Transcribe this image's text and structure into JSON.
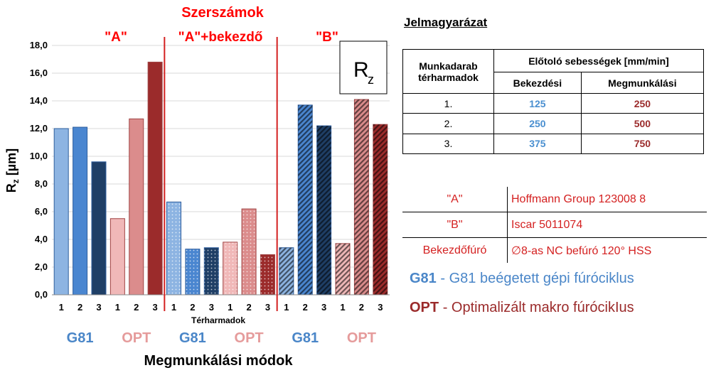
{
  "chart_data": {
    "type": "bar",
    "title": "Szerszámok",
    "ylabel": "Rz [µm]",
    "xlabel": "Megmunkálási módok",
    "xsublabel": "Térharmadok",
    "ylim": [
      0,
      18
    ],
    "yticks": [
      "0,0",
      "2,0",
      "4,0",
      "6,0",
      "8,0",
      "10,0",
      "12,0",
      "14,0",
      "16,0",
      "18,0"
    ],
    "badge": "Rz",
    "groups": [
      {
        "label": "\"A\"",
        "modes": [
          {
            "name": "G81",
            "bars": [
              {
                "x": "1",
                "value": 12.0
              },
              {
                "x": "2",
                "value": 12.1
              },
              {
                "x": "3",
                "value": 9.6
              }
            ]
          },
          {
            "name": "OPT",
            "bars": [
              {
                "x": "1",
                "value": 5.5
              },
              {
                "x": "2",
                "value": 12.7
              },
              {
                "x": "3",
                "value": 16.8
              }
            ]
          }
        ]
      },
      {
        "label": "\"A\"+bekezdő",
        "modes": [
          {
            "name": "G81",
            "bars": [
              {
                "x": "1",
                "value": 6.7
              },
              {
                "x": "2",
                "value": 3.3
              },
              {
                "x": "3",
                "value": 3.4
              }
            ]
          },
          {
            "name": "OPT",
            "bars": [
              {
                "x": "1",
                "value": 3.8
              },
              {
                "x": "2",
                "value": 6.2
              },
              {
                "x": "3",
                "value": 2.9
              }
            ]
          }
        ]
      },
      {
        "label": "\"B\"",
        "modes": [
          {
            "name": "G81",
            "bars": [
              {
                "x": "1",
                "value": 3.4
              },
              {
                "x": "2",
                "value": 13.7
              },
              {
                "x": "3",
                "value": 12.2
              }
            ]
          },
          {
            "name": "OPT",
            "bars": [
              {
                "x": "1",
                "value": 3.7
              },
              {
                "x": "2",
                "value": 14.1
              },
              {
                "x": "3",
                "value": 12.3
              }
            ]
          }
        ]
      }
    ],
    "colors": {
      "g81": [
        "#8db4e2",
        "#4a86d0",
        "#1f3f66"
      ],
      "opt": [
        "#f0b8b8",
        "#db8c8c",
        "#9b2b2b"
      ],
      "g81_label": "#4a86c8",
      "opt_label": "#e59b9b",
      "group_label": "#ff0000",
      "separator": "#d42020"
    }
  },
  "legend": {
    "title": "Jelmagyarázat",
    "table": {
      "col1_header": "Munkadarab térharmadok",
      "col2_header": "Előtoló sebességek [mm/min]",
      "sub_headers": [
        "Bekezdési",
        "Megmunkálási"
      ],
      "rows": [
        {
          "label": "1.",
          "bekezdesi": "125",
          "megmunkalasi": "250"
        },
        {
          "label": "2.",
          "bekezdesi": "250",
          "megmunkalasi": "500"
        },
        {
          "label": "3.",
          "bekezdesi": "375",
          "megmunkalasi": "750"
        }
      ]
    },
    "tools": [
      {
        "key": "\"A\"",
        "value": "Hoffmann Group 123008 8"
      },
      {
        "key": "\"B\"",
        "value": "Iscar 5011074"
      },
      {
        "key": "Bekezdőfúró",
        "value": "∅8-as NC befúró 120° HSS"
      }
    ],
    "modes": [
      {
        "code": "G81",
        "desc": "- G81 beégetett gépi fúróciklus",
        "color": "#4a86c8"
      },
      {
        "code": "OPT",
        "desc": "- Optimalizált makro fúrócikIus",
        "color": "#9b2b2b"
      }
    ]
  }
}
